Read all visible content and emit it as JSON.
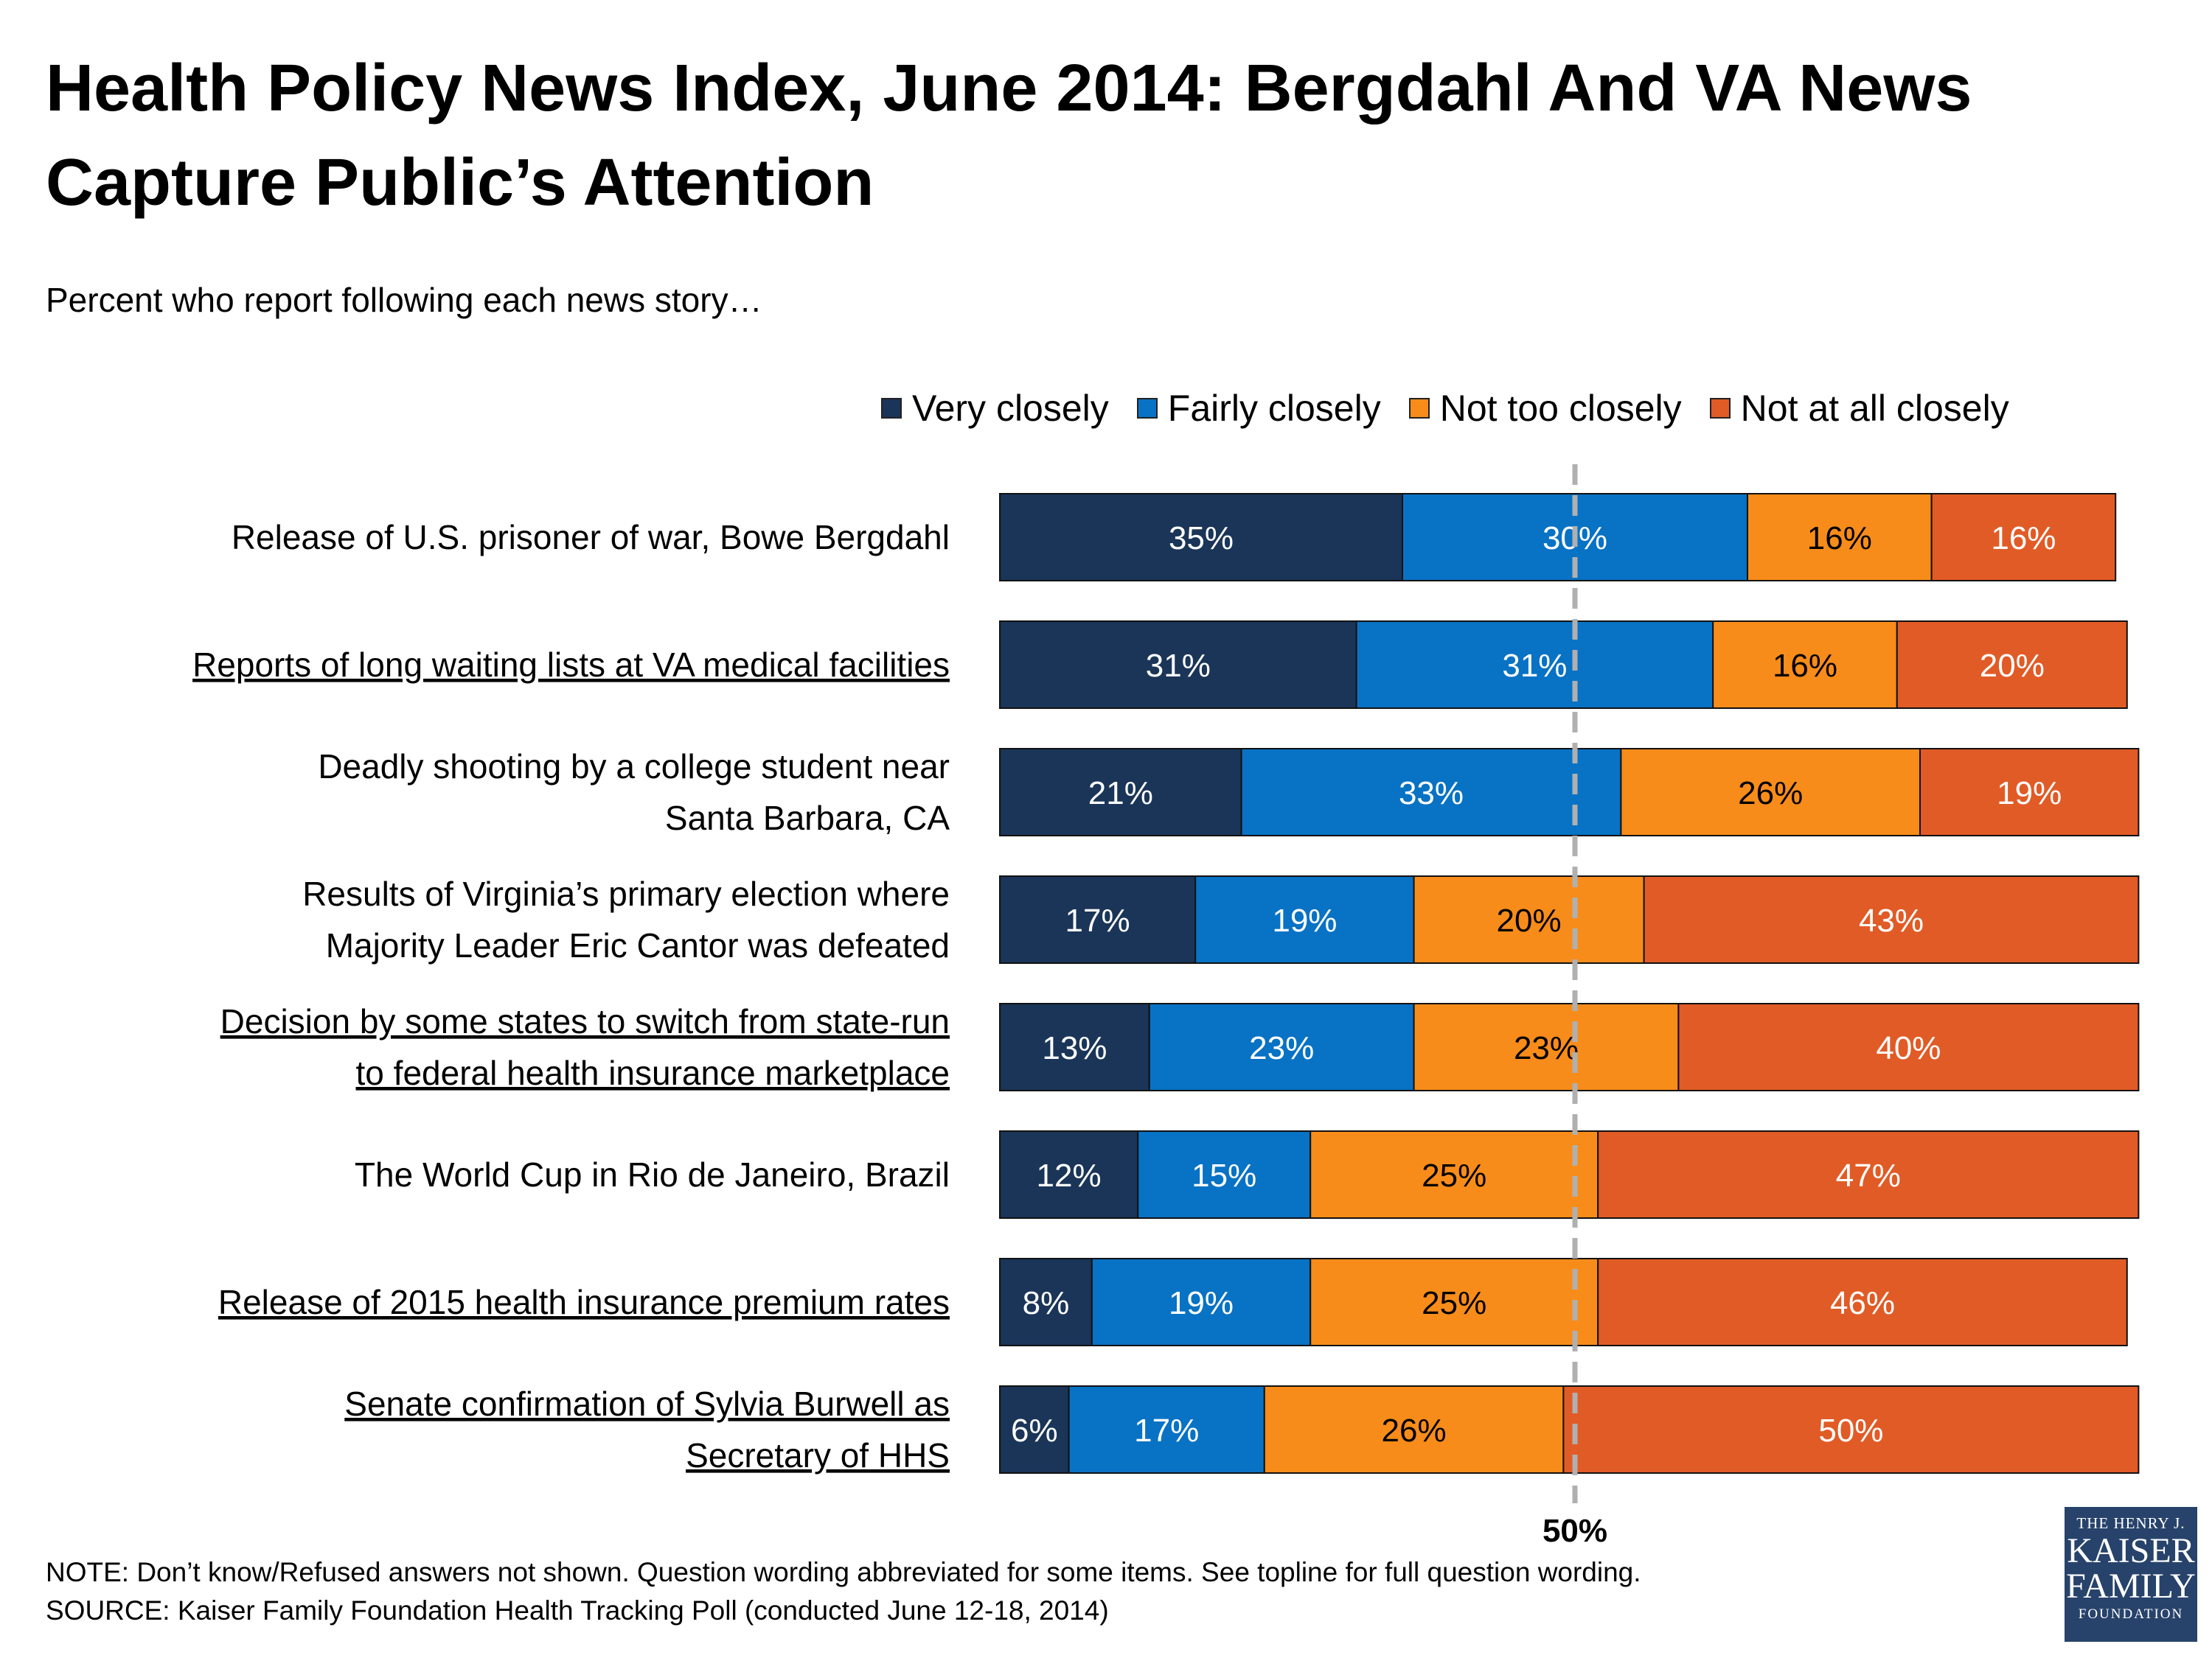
{
  "title": "Health Policy News Index, June 2014: Bergdahl And VA News Capture Public’s Attention",
  "subtitle": "Percent who report following each news story…",
  "note": "NOTE: Don’t know/Refused answers not shown. Question wording abbreviated for some items. See topline for full question wording.",
  "source": "SOURCE: Kaiser Family Foundation Health Tracking Poll (conducted June 12-18, 2014)",
  "logo": {
    "line1": "THE HENRY J.",
    "line2": "KAISER",
    "line3": "FAMILY",
    "line4": "FOUNDATION"
  },
  "colors": {
    "very": "#1a3558",
    "fairly": "#0872c4",
    "not_too": "#f88c1a",
    "not_at_all": "#e15b26"
  },
  "chart_data": {
    "type": "bar",
    "orientation": "horizontal",
    "stacked": true,
    "categories": [
      [
        "Release of U.S. prisoner of war, Bowe Bergdahl"
      ],
      [
        "Reports of long waiting lists at VA medical facilities"
      ],
      [
        "Deadly shooting by a college student near",
        "Santa Barbara, CA"
      ],
      [
        "Results of Virginia’s primary election where",
        "Majority Leader Eric Cantor was defeated"
      ],
      [
        "Decision by some states to switch from state-run",
        "to federal health insurance marketplace"
      ],
      [
        "The World Cup in Rio de Janeiro, Brazil"
      ],
      [
        "Release of 2015 health insurance premium rates"
      ],
      [
        "Senate confirmation of Sylvia Burwell as",
        "Secretary of HHS"
      ]
    ],
    "underlined": [
      false,
      true,
      false,
      false,
      true,
      false,
      true,
      true
    ],
    "series": [
      {
        "name": "Very closely",
        "values": [
          35,
          31,
          21,
          17,
          13,
          12,
          8,
          6
        ]
      },
      {
        "name": "Fairly closely",
        "values": [
          30,
          31,
          33,
          19,
          23,
          15,
          19,
          17
        ]
      },
      {
        "name": "Not too closely",
        "values": [
          16,
          16,
          26,
          20,
          23,
          25,
          25,
          26
        ]
      },
      {
        "name": "Not at all closely",
        "values": [
          16,
          20,
          19,
          43,
          40,
          47,
          46,
          50
        ]
      }
    ],
    "unit": "%",
    "xlim": [
      0,
      100
    ],
    "reference_line": {
      "value": 50,
      "label": "50%"
    },
    "legend_position": "top-right"
  }
}
